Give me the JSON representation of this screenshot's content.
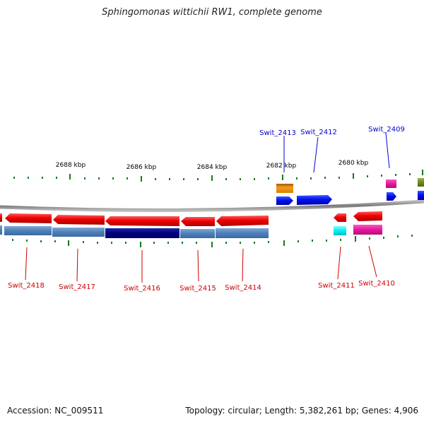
{
  "title": "Sphingomonas wittichii RW1, complete genome",
  "footer": {
    "accession": "Accession: NC_009511",
    "topology": "Topology: circular; Length: 5,382,261 bp; Genes: 4,906"
  },
  "scale_labels": [
    "2688 kbp",
    "2686 kbp",
    "2684 kbp",
    "2682 kbp",
    "2680 kbp"
  ],
  "gene_labels_top": [
    "Swit_2413",
    "Swit_2412",
    "Swit_2409"
  ],
  "gene_labels_bottom": [
    "Swit_2418",
    "Swit_2417",
    "Swit_2416",
    "Swit_2415",
    "Swit_2414",
    "Swit_2411",
    "Swit_2410"
  ],
  "colors": {
    "forward_label": "#0000cc",
    "reverse_label": "#cc0000",
    "backbone": "#888888",
    "tick": "#1a7a1a"
  }
}
